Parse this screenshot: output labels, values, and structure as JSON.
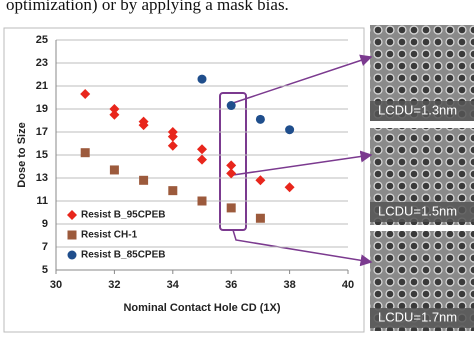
{
  "caption": "optimization) or by applying a mask bias.",
  "chart_data": {
    "type": "scatter",
    "x_label": "Nominal Contact Hole  CD (1X)",
    "y_label": "Dose to Size",
    "xlim": [
      30,
      40
    ],
    "xticks": [
      30,
      32,
      34,
      36,
      38,
      40
    ],
    "ylim": [
      5,
      25
    ],
    "yticks": [
      5,
      7,
      9,
      11,
      13,
      15,
      17,
      19,
      21,
      23,
      25
    ],
    "grid": true,
    "legend": "lower left",
    "series": [
      {
        "name": "Resist B_95CPEB",
        "color": "#e8261c",
        "marker": "diamond",
        "x": [
          31,
          32,
          32,
          33,
          33,
          34,
          34,
          34,
          35,
          35,
          36,
          36,
          37,
          38
        ],
        "values": [
          20.3,
          18.5,
          19.0,
          17.6,
          17.9,
          16.6,
          17.0,
          15.8,
          15.5,
          14.6,
          14.1,
          13.4,
          12.8,
          12.2
        ]
      },
      {
        "name": "Resist CH-1",
        "color": "#9c5a3c",
        "marker": "square",
        "x": [
          31,
          32,
          33,
          34,
          35,
          36,
          37
        ],
        "values": [
          15.2,
          13.7,
          12.8,
          11.9,
          11.0,
          10.4,
          9.5
        ]
      },
      {
        "name": "Resist B_85CPEB",
        "color": "#1f4e8c",
        "marker": "circle",
        "x": [
          35,
          36,
          37,
          38
        ],
        "values": [
          21.6,
          19.3,
          18.1,
          17.2
        ]
      }
    ]
  },
  "images": [
    {
      "label": "LCDU=1.3nm"
    },
    {
      "label": "LCDU=1.5nm"
    },
    {
      "label": "LCDU=1.7nm"
    }
  ]
}
